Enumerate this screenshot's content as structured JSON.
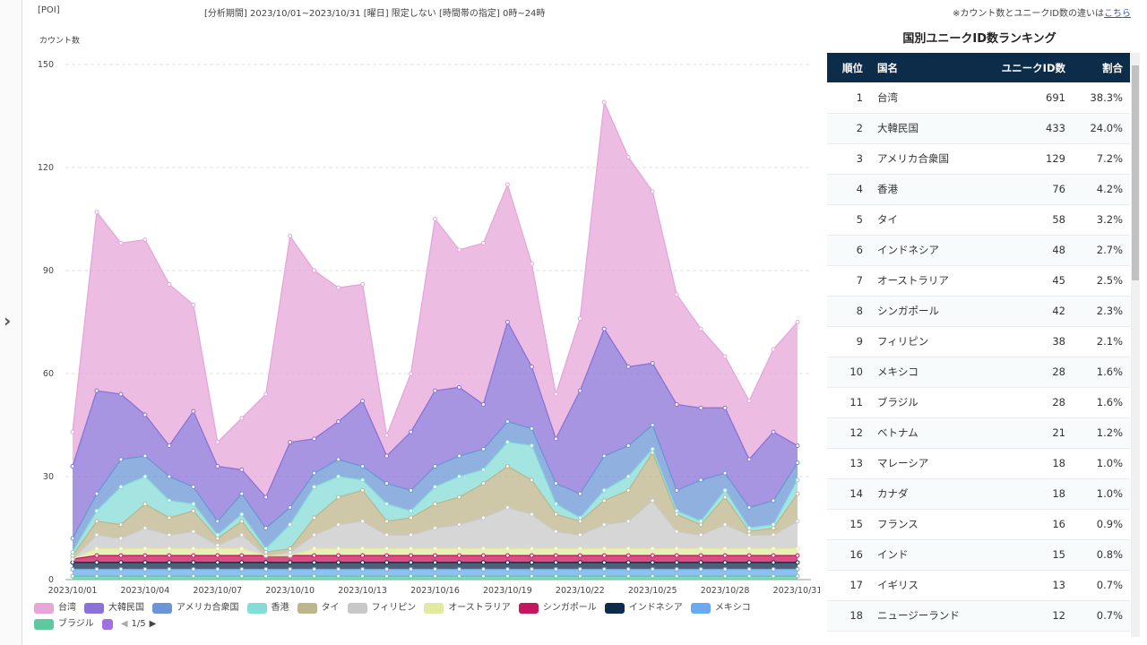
{
  "header": {
    "poi": "[POI]",
    "period": "[分析期間] 2023/10/01~2023/10/31  [曜日] 限定しない  [時間帯の指定] 0時~24時",
    "note": "※カウント数とユニークID数の違いは",
    "note_link": "こちら"
  },
  "chart_data": {
    "type": "area",
    "stacked": true,
    "ylabel": "カウント数",
    "ylim": [
      0,
      150
    ],
    "yticks": [
      0,
      30,
      60,
      90,
      120,
      150
    ],
    "grid": true,
    "x": [
      "2023/10/01",
      "2023/10/02",
      "2023/10/03",
      "2023/10/04",
      "2023/10/05",
      "2023/10/06",
      "2023/10/07",
      "2023/10/08",
      "2023/10/09",
      "2023/10/10",
      "2023/10/11",
      "2023/10/12",
      "2023/10/13",
      "2023/10/14",
      "2023/10/15",
      "2023/10/16",
      "2023/10/17",
      "2023/10/18",
      "2023/10/19",
      "2023/10/20",
      "2023/10/21",
      "2023/10/22",
      "2023/10/23",
      "2023/10/24",
      "2023/10/25",
      "2023/10/26",
      "2023/10/27",
      "2023/10/28",
      "2023/10/29",
      "2023/10/30",
      "2023/10/31"
    ],
    "xticks": [
      "2023/10/01",
      "2023/10/04",
      "2023/10/07",
      "2023/10/10",
      "2023/10/13",
      "2023/10/16",
      "2023/10/19",
      "2023/10/22",
      "2023/10/25",
      "2023/10/28",
      "2023/10/31"
    ],
    "series": [
      {
        "name": "台湾",
        "color": "#e6a6da",
        "values": [
          10,
          52,
          44,
          51,
          47,
          31,
          7,
          15,
          30,
          60,
          49,
          39,
          34,
          6,
          17,
          50,
          40,
          47,
          40,
          30,
          13,
          21,
          66,
          61,
          50,
          32,
          23,
          15,
          17,
          24,
          36
        ]
      },
      {
        "name": "大韓民国",
        "color": "#8a72d8",
        "values": [
          21,
          30,
          19,
          12,
          9,
          22,
          16,
          7,
          9,
          19,
          10,
          11,
          19,
          8,
          17,
          22,
          20,
          13,
          29,
          18,
          13,
          30,
          37,
          23,
          18,
          25,
          21,
          19,
          14,
          20,
          5
        ]
      },
      {
        "name": "アメリカ合衆国",
        "color": "#6b95d6",
        "values": [
          4,
          5,
          8,
          6,
          7,
          5,
          4,
          6,
          6,
          5,
          4,
          5,
          4,
          6,
          6,
          6,
          6,
          6,
          6,
          5,
          6,
          7,
          10,
          9,
          7,
          6,
          12,
          5,
          6,
          7,
          5
        ]
      },
      {
        "name": "香港",
        "color": "#85dcd8",
        "values": [
          1,
          3,
          11,
          8,
          5,
          2,
          1,
          2,
          1,
          7,
          9,
          6,
          3,
          5,
          2,
          5,
          6,
          4,
          7,
          10,
          3,
          1,
          3,
          4,
          1,
          1,
          1,
          2,
          1,
          1,
          4
        ]
      },
      {
        "name": "タイ",
        "color": "#bdb68c",
        "values": [
          1,
          4,
          4,
          7,
          5,
          6,
          2,
          4,
          1,
          1,
          5,
          8,
          9,
          4,
          5,
          7,
          8,
          10,
          12,
          10,
          5,
          4,
          7,
          9,
          14,
          5,
          3,
          8,
          1,
          2,
          8
        ]
      },
      {
        "name": "フィリピン",
        "color": "#c8c8c8",
        "values": [
          0,
          4,
          3,
          6,
          4,
          5,
          1,
          4,
          0,
          1,
          4,
          7,
          8,
          4,
          4,
          6,
          7,
          9,
          12,
          10,
          5,
          4,
          7,
          8,
          14,
          5,
          4,
          7,
          4,
          4,
          8
        ]
      },
      {
        "name": "オーストラリア",
        "color": "#e2eaa2",
        "values": [
          0,
          2,
          2,
          2,
          2,
          2,
          2,
          2,
          0,
          0,
          2,
          2,
          2,
          2,
          2,
          2,
          2,
          2,
          2,
          2,
          2,
          2,
          2,
          2,
          2,
          2,
          2,
          2,
          2,
          2,
          2
        ]
      },
      {
        "name": "シンガポール",
        "color": "#c5175e",
        "values": [
          1,
          2,
          2,
          2,
          2,
          2,
          2,
          2,
          2,
          2,
          2,
          2,
          2,
          2,
          2,
          2,
          2,
          2,
          2,
          2,
          2,
          2,
          2,
          2,
          2,
          2,
          2,
          2,
          2,
          2,
          2
        ]
      },
      {
        "name": "インドネシア",
        "color": "#0d2c4a",
        "values": [
          2,
          2,
          2,
          2,
          2,
          2,
          2,
          2,
          2,
          2,
          2,
          2,
          2,
          2,
          2,
          2,
          2,
          2,
          2,
          2,
          2,
          2,
          2,
          2,
          2,
          2,
          2,
          2,
          2,
          2,
          2
        ]
      },
      {
        "name": "メキシコ",
        "color": "#6aaaf2",
        "values": [
          2,
          2,
          2,
          2,
          2,
          2,
          2,
          2,
          2,
          2,
          2,
          2,
          2,
          2,
          2,
          2,
          2,
          2,
          2,
          2,
          2,
          2,
          2,
          2,
          2,
          2,
          2,
          2,
          2,
          2,
          2
        ]
      },
      {
        "name": "ブラジル",
        "color": "#5ec9a0",
        "values": [
          1,
          1,
          1,
          1,
          1,
          1,
          1,
          1,
          1,
          1,
          1,
          1,
          1,
          1,
          1,
          1,
          1,
          1,
          1,
          1,
          1,
          1,
          1,
          1,
          1,
          1,
          1,
          1,
          1,
          1,
          1
        ]
      }
    ],
    "legend_extra_color": "#a070e0",
    "legend_page": "1/5"
  },
  "ranking": {
    "title": "国別ユニークID数ランキング",
    "columns": [
      "順位",
      "国名",
      "ユニークID数",
      "割合"
    ],
    "rows": [
      [
        "1",
        "台湾",
        "691",
        "38.3%"
      ],
      [
        "2",
        "大韓民国",
        "433",
        "24.0%"
      ],
      [
        "3",
        "アメリカ合衆国",
        "129",
        "7.2%"
      ],
      [
        "4",
        "香港",
        "76",
        "4.2%"
      ],
      [
        "5",
        "タイ",
        "58",
        "3.2%"
      ],
      [
        "6",
        "インドネシア",
        "48",
        "2.7%"
      ],
      [
        "7",
        "オーストラリア",
        "45",
        "2.5%"
      ],
      [
        "8",
        "シンガポール",
        "42",
        "2.3%"
      ],
      [
        "9",
        "フィリピン",
        "38",
        "2.1%"
      ],
      [
        "10",
        "メキシコ",
        "28",
        "1.6%"
      ],
      [
        "11",
        "ブラジル",
        "28",
        "1.6%"
      ],
      [
        "12",
        "ベトナム",
        "21",
        "1.2%"
      ],
      [
        "13",
        "マレーシア",
        "18",
        "1.0%"
      ],
      [
        "14",
        "カナダ",
        "18",
        "1.0%"
      ],
      [
        "15",
        "フランス",
        "16",
        "0.9%"
      ],
      [
        "16",
        "インド",
        "15",
        "0.8%"
      ],
      [
        "17",
        "イギリス",
        "13",
        "0.7%"
      ],
      [
        "18",
        "ニュージーランド",
        "12",
        "0.7%"
      ]
    ]
  }
}
